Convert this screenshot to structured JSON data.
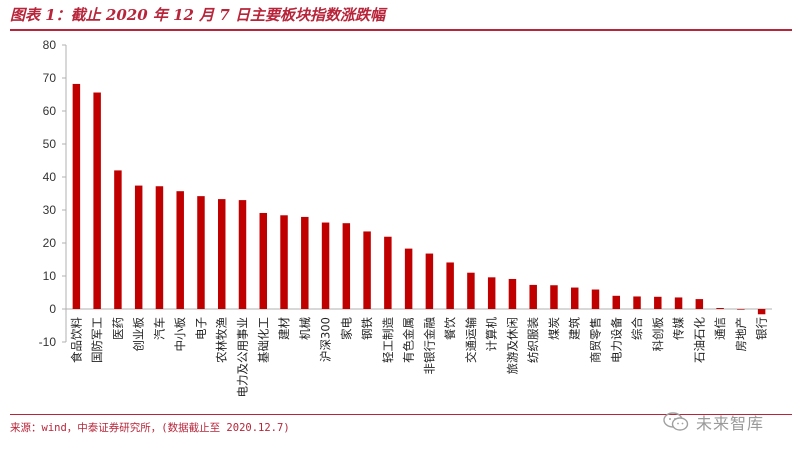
{
  "header": {
    "title": "图表 1：截止 2020 年 12 月 7 日主要板块指数涨跌幅"
  },
  "footer": {
    "source": "来源：wind，中泰证券研究所，(数据截止至 2020.12.7)",
    "watermark": "未来智库"
  },
  "colors": {
    "bar": "#c00000",
    "axis": "#b0b0b0",
    "accent": "#b8253a"
  },
  "chart_data": {
    "type": "bar",
    "title": "",
    "xlabel": "",
    "ylabel": "",
    "ylim": [
      -10,
      80
    ],
    "yticks": [
      -10,
      0,
      10,
      20,
      30,
      40,
      50,
      60,
      70,
      80
    ],
    "grid": false,
    "categories": [
      "食品饮料",
      "国防军工",
      "医药",
      "创业板",
      "汽车",
      "中小板",
      "电子",
      "农林牧渔",
      "电力及公用事业",
      "基础化工",
      "建材",
      "机械",
      "沪深300",
      "家电",
      "钢铁",
      "轻工制造",
      "有色金属",
      "非银行金融",
      "餐饮",
      "交通运输",
      "计算机",
      "旅游及休闲",
      "纺织服装",
      "煤炭",
      "建筑",
      "商贸零售",
      "电力设备",
      "综合",
      "科创板",
      "传媒",
      "石油石化",
      "通信",
      "房地产",
      "银行"
    ],
    "values": [
      68.2,
      65.6,
      42.0,
      37.4,
      37.2,
      35.7,
      34.2,
      33.3,
      33.0,
      29.1,
      28.4,
      27.9,
      26.2,
      26.0,
      23.5,
      21.9,
      18.3,
      16.8,
      14.1,
      11.0,
      9.6,
      9.1,
      7.3,
      7.2,
      6.5,
      5.9,
      4.0,
      3.8,
      3.7,
      3.5,
      3.0,
      0.3,
      -0.2,
      -1.6
    ]
  }
}
